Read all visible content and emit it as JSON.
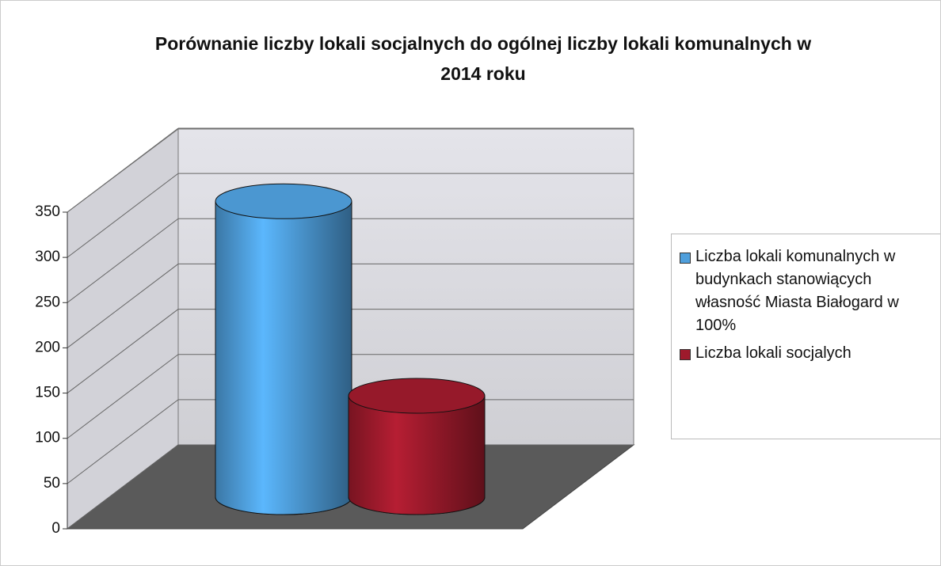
{
  "chart_data": {
    "type": "bar3d",
    "title": "Porównanie liczby lokali socjalnych do ogólnej liczby lokali komunalnych w 2014 roku",
    "series": [
      {
        "name": "Liczba lokali komunalnych w budynkach stanowiących własność Miasta Białogard w 100%",
        "color": "#4f9fdc",
        "values": [
          327
        ]
      },
      {
        "name": "Liczba lokali socjalych",
        "color": "#9e1a2c",
        "values": [
          112
        ]
      }
    ],
    "ylim": [
      0,
      350
    ],
    "yticks": [
      0,
      50,
      100,
      150,
      200,
      250,
      300,
      350
    ],
    "grid": true,
    "legend": "right"
  }
}
